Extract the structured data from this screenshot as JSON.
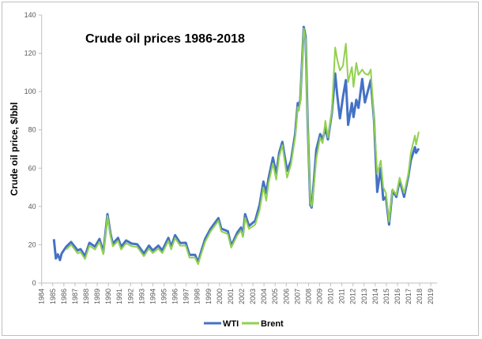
{
  "chart_data": {
    "type": "line",
    "title": "Crude oil prices 1986-2018",
    "xlabel": "",
    "ylabel": "Crude oil price, $/bbl",
    "xlim": [
      1984,
      2019
    ],
    "ylim": [
      0,
      140
    ],
    "yticks": [
      0,
      20,
      40,
      60,
      80,
      100,
      120,
      140
    ],
    "xticks": [
      "1984",
      "1985",
      "1986",
      "1987",
      "1988",
      "1989",
      "1990",
      "1991",
      "1992",
      "1993",
      "1994",
      "1995",
      "1996",
      "1997",
      "1998",
      "1999",
      "2000",
      "2001",
      "2002",
      "2003",
      "2004",
      "2005",
      "2006",
      "2007",
      "2008",
      "2009",
      "2010",
      "2011",
      "2012",
      "2013",
      "2014",
      "2015",
      "2016",
      "2017",
      "2018",
      "2019"
    ],
    "grid": false,
    "legend_position": "bottom",
    "series": [
      {
        "name": "WTI",
        "color": "#4472C4",
        "points": [
          [
            1985.1,
            22.9
          ],
          [
            1985.28,
            12.8
          ],
          [
            1985.46,
            15
          ],
          [
            1985.65,
            12
          ],
          [
            1985.8,
            15.4
          ],
          [
            1986.2,
            18.9
          ],
          [
            1986.65,
            21.4
          ],
          [
            1987.24,
            17
          ],
          [
            1987.5,
            17.7
          ],
          [
            1987.9,
            14
          ],
          [
            1988.3,
            21
          ],
          [
            1988.8,
            19
          ],
          [
            1989.2,
            23
          ],
          [
            1989.55,
            16
          ],
          [
            1989.92,
            36
          ],
          [
            1990.2,
            25.6
          ],
          [
            1990.4,
            20.6
          ],
          [
            1990.87,
            23.6
          ],
          [
            1991.15,
            18.9
          ],
          [
            1991.6,
            22.2
          ],
          [
            1992.1,
            20.6
          ],
          [
            1992.6,
            20.2
          ],
          [
            1993.2,
            15.4
          ],
          [
            1993.65,
            19.5
          ],
          [
            1994.0,
            17
          ],
          [
            1994.5,
            19.5
          ],
          [
            1994.85,
            17
          ],
          [
            1995.4,
            23.6
          ],
          [
            1995.65,
            19
          ],
          [
            1996.0,
            25
          ],
          [
            1996.46,
            20.9
          ],
          [
            1996.96,
            21
          ],
          [
            1997.3,
            14.7
          ],
          [
            1997.8,
            14.7
          ],
          [
            1998.07,
            11
          ],
          [
            1998.4,
            17.4
          ],
          [
            1998.7,
            23
          ],
          [
            1999.2,
            28.4
          ],
          [
            1999.9,
            33.9
          ],
          [
            2000.15,
            28.4
          ],
          [
            2000.75,
            27
          ],
          [
            2001.05,
            19.5
          ],
          [
            2001.6,
            26.4
          ],
          [
            2001.93,
            29
          ],
          [
            2002.1,
            25
          ],
          [
            2002.3,
            36
          ],
          [
            2002.65,
            29.8
          ],
          [
            2003.2,
            32.5
          ],
          [
            2003.6,
            40.8
          ],
          [
            2003.95,
            53
          ],
          [
            2004.2,
            47
          ],
          [
            2004.4,
            54.5
          ],
          [
            2004.8,
            65.5
          ],
          [
            2005.1,
            57
          ],
          [
            2005.36,
            68
          ],
          [
            2005.65,
            73.7
          ],
          [
            2006.07,
            58.6
          ],
          [
            2006.43,
            64
          ],
          [
            2006.8,
            77.8
          ],
          [
            2007.03,
            94
          ],
          [
            2007.14,
            92
          ],
          [
            2007.26,
            95.7
          ],
          [
            2007.57,
            133.8
          ],
          [
            2007.74,
            128.6
          ],
          [
            2007.92,
            84.7
          ],
          [
            2008.16,
            40.8
          ],
          [
            2008.28,
            39.4
          ],
          [
            2008.45,
            50.4
          ],
          [
            2008.7,
            69.6
          ],
          [
            2009.05,
            77.8
          ],
          [
            2009.27,
            75
          ],
          [
            2009.52,
            81
          ],
          [
            2009.75,
            75
          ],
          [
            2010.1,
            88.8
          ],
          [
            2010.4,
            109.4
          ],
          [
            2010.58,
            98.4
          ],
          [
            2010.83,
            86
          ],
          [
            2011.1,
            97
          ],
          [
            2011.36,
            106
          ],
          [
            2011.57,
            82.6
          ],
          [
            2011.9,
            94
          ],
          [
            2012.05,
            86.7
          ],
          [
            2012.3,
            95.7
          ],
          [
            2012.5,
            91.5
          ],
          [
            2012.83,
            106.6
          ],
          [
            2013.07,
            94.3
          ],
          [
            2013.37,
            101
          ],
          [
            2013.6,
            106
          ],
          [
            2013.9,
            84.7
          ],
          [
            2014.18,
            47.6
          ],
          [
            2014.5,
            60
          ],
          [
            2014.72,
            43.5
          ],
          [
            2014.96,
            45
          ],
          [
            2015.25,
            30.5
          ],
          [
            2015.55,
            48.3
          ],
          [
            2015.9,
            45
          ],
          [
            2016.2,
            53.8
          ],
          [
            2016.6,
            45
          ],
          [
            2016.98,
            55.9
          ],
          [
            2017.2,
            64
          ],
          [
            2017.57,
            71
          ],
          [
            2017.68,
            68
          ],
          [
            2017.92,
            70.3
          ]
        ]
      },
      {
        "name": "Brent",
        "color": "#92D050",
        "points": [
          [
            1986.2,
            17.5
          ],
          [
            1986.65,
            20
          ],
          [
            1987.24,
            15.5
          ],
          [
            1987.5,
            16.2
          ],
          [
            1987.9,
            12.5
          ],
          [
            1988.3,
            19.5
          ],
          [
            1988.8,
            17.5
          ],
          [
            1989.2,
            21.5
          ],
          [
            1989.55,
            15
          ],
          [
            1989.92,
            35
          ],
          [
            1990.2,
            24.5
          ],
          [
            1990.4,
            19.2
          ],
          [
            1990.87,
            22
          ],
          [
            1991.15,
            17.5
          ],
          [
            1991.6,
            20.8
          ],
          [
            1992.1,
            19.2
          ],
          [
            1992.6,
            18.8
          ],
          [
            1993.2,
            14
          ],
          [
            1993.65,
            18
          ],
          [
            1994.0,
            15.6
          ],
          [
            1994.5,
            18
          ],
          [
            1994.85,
            15.6
          ],
          [
            1995.4,
            22
          ],
          [
            1995.65,
            17.6
          ],
          [
            1996.0,
            23.5
          ],
          [
            1996.46,
            19.5
          ],
          [
            1996.96,
            19.5
          ],
          [
            1997.3,
            13.3
          ],
          [
            1997.8,
            13.3
          ],
          [
            1998.07,
            9.8
          ],
          [
            1998.4,
            16
          ],
          [
            1998.7,
            21.5
          ],
          [
            1999.2,
            27
          ],
          [
            1999.9,
            32.5
          ],
          [
            2000.15,
            27
          ],
          [
            2000.75,
            25.5
          ],
          [
            2001.05,
            18.5
          ],
          [
            2001.6,
            25
          ],
          [
            2001.93,
            27.5
          ],
          [
            2002.1,
            24
          ],
          [
            2002.3,
            34
          ],
          [
            2002.65,
            28.3
          ],
          [
            2003.2,
            30.5
          ],
          [
            2003.6,
            38
          ],
          [
            2003.95,
            50
          ],
          [
            2004.2,
            43
          ],
          [
            2004.4,
            52
          ],
          [
            2004.8,
            62.5
          ],
          [
            2005.1,
            54
          ],
          [
            2005.36,
            66
          ],
          [
            2005.65,
            72
          ],
          [
            2006.07,
            55
          ],
          [
            2006.43,
            62
          ],
          [
            2006.8,
            76
          ],
          [
            2007.03,
            92
          ],
          [
            2007.14,
            90
          ],
          [
            2007.26,
            95
          ],
          [
            2007.57,
            133
          ],
          [
            2007.74,
            127
          ],
          [
            2007.92,
            84
          ],
          [
            2008.16,
            42
          ],
          [
            2008.28,
            40
          ],
          [
            2008.45,
            48
          ],
          [
            2008.7,
            65
          ],
          [
            2009.05,
            76
          ],
          [
            2009.27,
            73
          ],
          [
            2009.52,
            84.7
          ],
          [
            2009.75,
            76
          ],
          [
            2010.1,
            90
          ],
          [
            2010.4,
            123
          ],
          [
            2010.58,
            117
          ],
          [
            2010.83,
            111
          ],
          [
            2011.1,
            113.5
          ],
          [
            2011.36,
            125
          ],
          [
            2011.57,
            105
          ],
          [
            2011.9,
            112.8
          ],
          [
            2012.05,
            102.5
          ],
          [
            2012.3,
            115
          ],
          [
            2012.5,
            108.7
          ],
          [
            2012.83,
            111.5
          ],
          [
            2013.07,
            109.4
          ],
          [
            2013.37,
            108.7
          ],
          [
            2013.6,
            111.5
          ],
          [
            2013.9,
            84.7
          ],
          [
            2014.18,
            57
          ],
          [
            2014.5,
            64
          ],
          [
            2014.72,
            50
          ],
          [
            2014.96,
            47
          ],
          [
            2015.25,
            32
          ],
          [
            2015.55,
            49
          ],
          [
            2015.9,
            46
          ],
          [
            2016.2,
            55
          ],
          [
            2016.6,
            47
          ],
          [
            2016.98,
            57
          ],
          [
            2017.2,
            68
          ],
          [
            2017.57,
            77
          ],
          [
            2017.68,
            72.3
          ],
          [
            2017.92,
            79
          ]
        ]
      }
    ]
  }
}
